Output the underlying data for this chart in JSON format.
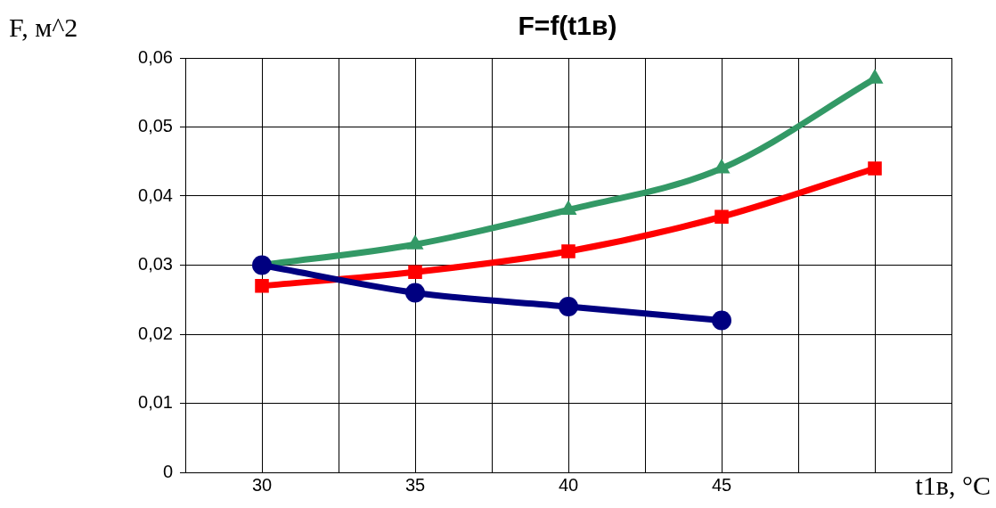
{
  "chart_data": {
    "type": "line",
    "title": "F=f(t1в)",
    "xlabel": "t1в, °C",
    "ylabel": "F, м^2",
    "xlim": [
      27.5,
      52.5
    ],
    "xticks": [
      30,
      {
        "value": 32.5,
        "label": null
      },
      35,
      {
        "value": 37.5,
        "label": null
      },
      40,
      {
        "value": 42.5,
        "label": null
      },
      45,
      {
        "value": 47.5,
        "label": null
      },
      {
        "value": 50,
        "label": null
      },
      {
        "value": 52.5,
        "label": null
      }
    ],
    "ylim": [
      0,
      0.06
    ],
    "yticks": [
      {
        "value": 0,
        "label": "0"
      },
      {
        "value": 0.01,
        "label": "0,01"
      },
      {
        "value": 0.02,
        "label": "0,02"
      },
      {
        "value": 0.03,
        "label": "0,03"
      },
      {
        "value": 0.04,
        "label": "0,04"
      },
      {
        "value": 0.05,
        "label": "0,05"
      },
      {
        "value": 0.06,
        "label": "0,06"
      }
    ],
    "grid": true,
    "legend": false,
    "series": [
      {
        "color": "#000080",
        "marker": "circle",
        "x": [
          30,
          35,
          40,
          45
        ],
        "values": [
          0.03,
          0.026,
          0.024,
          0.022
        ]
      },
      {
        "color": "#ff0000",
        "marker": "square",
        "x": [
          30,
          35,
          40,
          45,
          50
        ],
        "values": [
          0.027,
          0.029,
          0.032,
          0.037,
          0.044
        ]
      },
      {
        "color": "#339966",
        "marker": "triangle",
        "x": [
          30,
          35,
          40,
          45,
          50
        ],
        "values": [
          0.03,
          0.033,
          0.038,
          0.044,
          0.057
        ]
      }
    ]
  }
}
